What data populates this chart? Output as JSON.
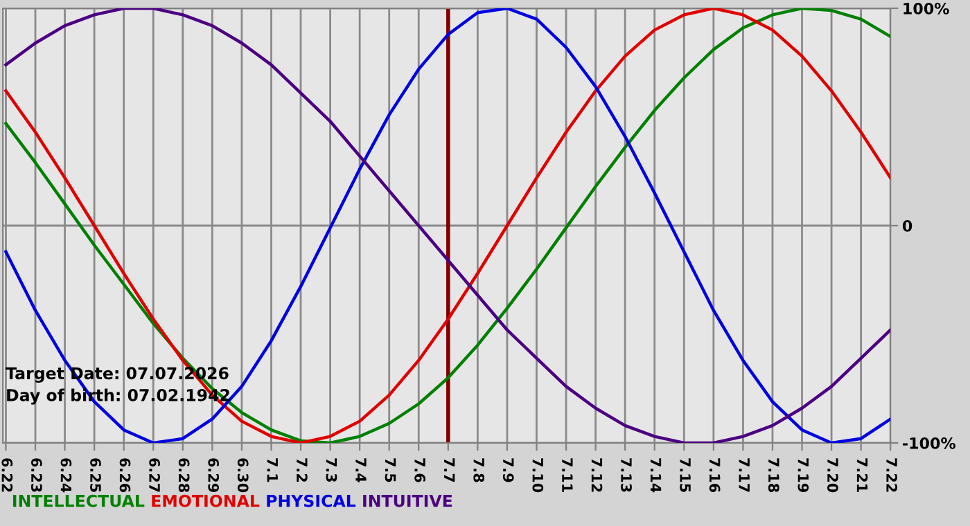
{
  "chart_data": {
    "type": "line",
    "categories": [
      "6.22",
      "6.23",
      "6.24",
      "6.25",
      "6.26",
      "6.27",
      "6.28",
      "6.29",
      "6.30",
      "7.1",
      "7.2",
      "7.3",
      "7.4",
      "7.5",
      "7.6",
      "7.7",
      "7.8",
      "7.9",
      "7.10",
      "7.11",
      "7.12",
      "7.13",
      "7.14",
      "7.15",
      "7.16",
      "7.17",
      "7.18",
      "7.19",
      "7.20",
      "7.21",
      "7.22"
    ],
    "series": [
      {
        "name": "INTELLECTUAL",
        "color": "#008000",
        "values": [
          47,
          29,
          10,
          -9,
          -27,
          -45,
          -61,
          -75,
          -86,
          -94,
          -99,
          -100,
          -97,
          -91,
          -82,
          -70,
          -55,
          -38,
          -20,
          -1,
          18,
          36,
          53,
          68,
          81,
          91,
          97,
          100,
          99,
          95,
          87
        ]
      },
      {
        "name": "EMOTIONAL",
        "color": "#e00000",
        "values": [
          62,
          43,
          22,
          0,
          -22,
          -43,
          -62,
          -78,
          -90,
          -97,
          -100,
          -97,
          -90,
          -78,
          -62,
          -43,
          -22,
          0,
          22,
          43,
          62,
          78,
          90,
          97,
          100,
          97,
          90,
          78,
          62,
          43,
          22
        ]
      },
      {
        "name": "PHYSICAL",
        "color": "#0000e0",
        "values": [
          -12,
          -39,
          -62,
          -81,
          -94,
          -100,
          -98,
          -89,
          -74,
          -53,
          -28,
          -1,
          26,
          51,
          72,
          88,
          98,
          100,
          95,
          82,
          64,
          41,
          15,
          -12,
          -39,
          -62,
          -81,
          -94,
          -100,
          -98,
          -89
        ]
      },
      {
        "name": "INTUITIVE",
        "color": "#4b0082",
        "values": [
          74,
          84,
          92,
          97,
          100,
          100,
          97,
          92,
          84,
          74,
          61,
          48,
          32,
          16,
          0,
          -16,
          -32,
          -48,
          -61,
          -74,
          -84,
          -92,
          -97,
          -100,
          -100,
          -97,
          -92,
          -84,
          -74,
          -61,
          -48
        ]
      }
    ],
    "ylim": [
      -100,
      100
    ],
    "yticks": [
      {
        "value": 100,
        "label": "100%"
      },
      0,
      {
        "value": -100,
        "label": "-100%"
      }
    ],
    "grid": true,
    "legend": "bottom",
    "marker": "none",
    "line_style": "solid",
    "ref_lines": [
      {
        "axis": "x",
        "value": "7.7",
        "color": "#800000"
      }
    ],
    "annotations": [
      "Target Date: 07.07.2026",
      "Day of birth: 07.02.1942"
    ]
  }
}
